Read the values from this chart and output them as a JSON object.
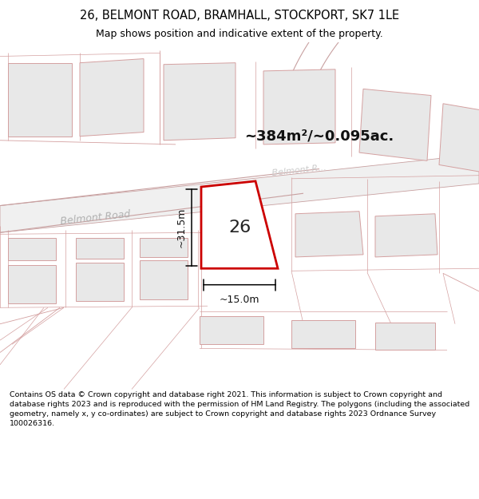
{
  "title_line1": "26, BELMONT ROAD, BRAMHALL, STOCKPORT, SK7 1LE",
  "title_line2": "Map shows position and indicative extent of the property.",
  "footer": "Contains OS data © Crown copyright and database right 2021. This information is subject to Crown copyright and database rights 2023 and is reproduced with the permission of HM Land Registry. The polygons (including the associated geometry, namely x, y co-ordinates) are subject to Crown copyright and database rights 2023 Ordnance Survey 100026316.",
  "area_label": "~384m²/~0.095ac.",
  "width_label": "~15.0m",
  "height_label": "~31.5m",
  "plot_number": "26",
  "road_label_left": "Belmont Road",
  "road_label_right": "Belmont R...",
  "bg_color": "#ffffff",
  "plot_stroke": "#cc0000",
  "plot_fill": "#ffffff",
  "building_fill": "#e8e8e8",
  "building_stroke": "#d4a0a0",
  "road_fill": "#f0f0f0",
  "road_stroke": "#c8a0a0",
  "line_color": "#d4a0a0",
  "dim_color": "#000000",
  "figsize": [
    6.0,
    6.25
  ],
  "dpi": 100,
  "title_fontsize": 10.5,
  "subtitle_fontsize": 9,
  "footer_fontsize": 6.8
}
